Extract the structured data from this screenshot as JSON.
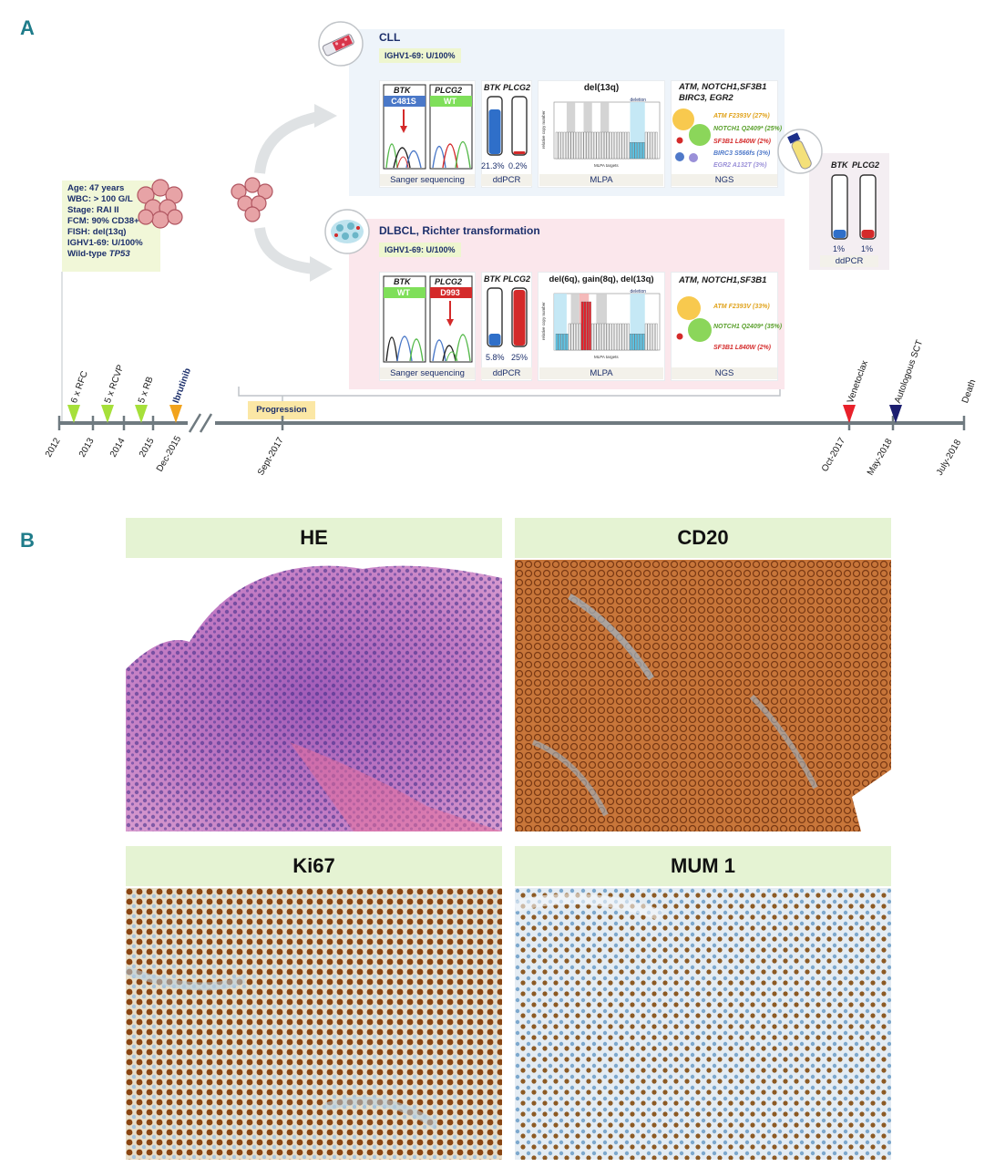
{
  "panels": {
    "a": "A",
    "b": "B"
  },
  "patient": {
    "lines": [
      "Age:  47 years",
      "WBC: > 100 G/L",
      "Stage: RAI II",
      "FCM: 90% CD38+",
      "FISH: del(13q)",
      "IGHV1-69: U/100%"
    ],
    "tp53_prefix": "Wild-type ",
    "tp53_gene": "TP53"
  },
  "cll": {
    "title": "CLL",
    "ighv": "IGHV1-69: U/100%",
    "sanger": {
      "btk": "BTK",
      "btk_mut": "C481S",
      "plcg2": "PLCG2",
      "plcg2_mut": "WT",
      "label": "Sanger sequencing"
    },
    "ddpcr": {
      "btk": "BTK",
      "plcg2": "PLCG2",
      "btk_pct": "21.3%",
      "plcg2_pct": "0.2%",
      "label": "ddPCR"
    },
    "mlpa": {
      "title": "del(13q)",
      "label": "MLPA",
      "deletion_tag": "deletion"
    },
    "ngs": {
      "title_line1": "ATM, NOTCH1,SF3B1",
      "title_line2": "BIRC3, EGR2",
      "label": "NGS",
      "mutations": [
        {
          "text": "ATM F2393V (27%)",
          "color": "#e0a21a"
        },
        {
          "text": "NOTCH1 Q2409* (25%)",
          "color": "#5aa02c"
        },
        {
          "text": "SF3B1 L840W (2%)",
          "color": "#d42a2a"
        },
        {
          "text": "BIRC3 S566fs (3%)",
          "color": "#4f79c9"
        },
        {
          "text": "EGR2 A132T (3%)",
          "color": "#9a90d8"
        }
      ]
    }
  },
  "dlbcl": {
    "title": "DLBCL, Richter transformation",
    "ighv": "IGHV1-69: U/100%",
    "sanger": {
      "btk": "BTK",
      "btk_mut": "WT",
      "plcg2": "PLCG2",
      "plcg2_mut": "D993",
      "label": "Sanger sequencing"
    },
    "ddpcr": {
      "btk": "BTK",
      "plcg2": "PLCG2",
      "btk_pct": "5.8%",
      "plcg2_pct": "25%",
      "label": "ddPCR"
    },
    "mlpa": {
      "title": "del(6q), gain(8q), del(13q)",
      "label": "MLPA",
      "deletion_tag": "deletion"
    },
    "ngs": {
      "title": "ATM, NOTCH1,SF3B1",
      "label": "NGS",
      "mutations": [
        {
          "text": "ATM F2393V (33%)",
          "color": "#e0a21a"
        },
        {
          "text": "NOTCH1 Q2409* (35%)",
          "color": "#5aa02c"
        },
        {
          "text": "SF3B1 L840W (2%)",
          "color": "#d42a2a"
        }
      ]
    }
  },
  "blood": {
    "btk": "BTK",
    "plcg2": "PLCG2",
    "btk_pct": "1%",
    "plcg2_pct": "1%",
    "label": "ddPCR"
  },
  "mlpa_axis": {
    "ylabel": "relative copy number",
    "xlabel": "MLPA targets"
  },
  "timeline": {
    "progression": "Progression",
    "dates": [
      "2012",
      "2013",
      "2014",
      "2015",
      "Dec-2015",
      "Sept-2017",
      "Oct-2017",
      "May-2018",
      "July-2018"
    ],
    "treatments": [
      {
        "text": "6 x RFC",
        "color": "#a6e03a"
      },
      {
        "text": "5 x RCVP",
        "color": "#a6e03a"
      },
      {
        "text": "5 x RB",
        "color": "#a6e03a"
      },
      {
        "text": "Ibrutinib",
        "color": "#f2a31c"
      },
      {
        "text": "Venetoclax",
        "color": "#e8202a"
      },
      {
        "text": "Autologous SCT",
        "color": "#1c1e70"
      },
      {
        "text": "Death",
        "color": ""
      }
    ]
  },
  "stains": [
    {
      "label": "HE"
    },
    {
      "label": "CD20"
    },
    {
      "label": "Ki67"
    },
    {
      "label": "MUM 1"
    }
  ],
  "colors": {
    "accent": "#1f7c8a",
    "navy": "#1c2f6b",
    "btk_blue": "#2f6fc9",
    "plcg2_red": "#d42a2a",
    "deletion": "#5cc6e8",
    "gain": "#e8202a"
  }
}
